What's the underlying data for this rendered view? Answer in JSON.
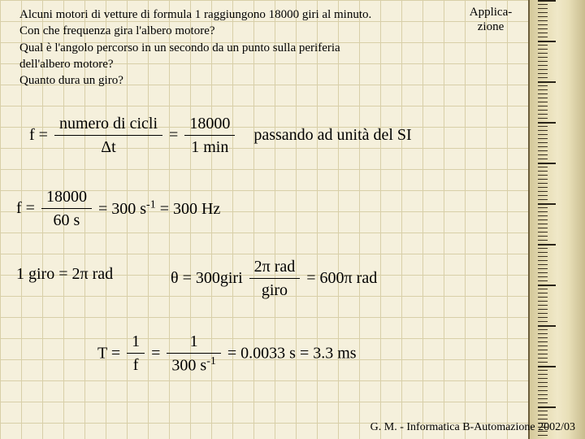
{
  "question": {
    "line1": "Alcuni motori di vetture di formula 1 raggiungono 18000 giri al minuto.",
    "line2": "Con che frequenza gira l'albero motore?",
    "line3": "Qual è l'angolo percorso in un secondo da un punto sulla periferia",
    "line4": "dell'albero motore?",
    "line5": "Quanto dura un giro?"
  },
  "label": {
    "line1": "Applica-",
    "line2": "zione"
  },
  "eq1": {
    "lhs": "f",
    "frac1_num": "numero di cicli",
    "frac1_den": "Δt",
    "frac2_num": "18000",
    "frac2_den": "1 min",
    "tail": "passando ad unità del SI"
  },
  "eq2": {
    "lhs": "f",
    "frac_num": "18000",
    "frac_den": "60 s",
    "res_a": "300 s",
    "res_exp": "-1",
    "res_b": "300 Hz"
  },
  "eq3": {
    "text": "1 giro = 2π rad"
  },
  "eq4": {
    "lhs": "θ = 300giri",
    "frac_num": "2π rad",
    "frac_den": "giro",
    "rhs": "= 600π rad"
  },
  "eq5": {
    "lhs": "T =",
    "frac1_num": "1",
    "frac1_den": "f",
    "frac2_num": "1",
    "frac2_den_a": "300 s",
    "frac2_den_exp": "-1",
    "rhs": "= 0.0033 s = 3.3 ms"
  },
  "footer": "G. M. - Informatica B-Automazione 2002/03"
}
